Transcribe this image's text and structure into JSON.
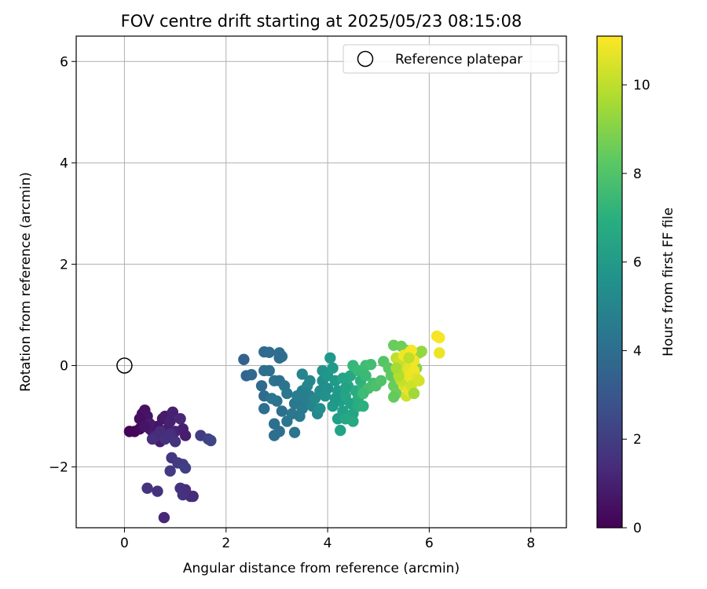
{
  "chart_data": {
    "type": "scatter",
    "title": "FOV centre drift starting at 2025/05/23 08:15:08",
    "xlabel": "Angular distance from reference (arcmin)",
    "ylabel": "Rotation from reference (arcmin)",
    "xlim": [
      -0.95,
      8.7
    ],
    "ylim": [
      -3.2,
      6.5
    ],
    "xticks": [
      0,
      2,
      4,
      6,
      8
    ],
    "xtick_labels": [
      "0",
      "2",
      "4",
      "6",
      "8"
    ],
    "yticks": [
      -2,
      0,
      2,
      4,
      6
    ],
    "ytick_labels": [
      "−2",
      "0",
      "2",
      "4",
      "6"
    ],
    "grid": true,
    "legend": {
      "position": "top-right",
      "entries": [
        "Reference platepar"
      ]
    },
    "reference_point": {
      "x": 0,
      "y": 0,
      "label": "Reference platepar",
      "marker": "open-circle"
    },
    "colorbar": {
      "label": "Hours from first FF file",
      "min": 0,
      "max": 11.1,
      "ticks": [
        0,
        2,
        4,
        6,
        8,
        10
      ],
      "tick_labels": [
        "0",
        "2",
        "4",
        "6",
        "8",
        "10"
      ],
      "colormap": "viridis"
    },
    "points": [
      [
        0.1,
        -1.3,
        0.1
      ],
      [
        0.2,
        -1.3,
        0.2
      ],
      [
        0.3,
        -1.25,
        0.3
      ],
      [
        0.35,
        -0.95,
        0.4
      ],
      [
        0.4,
        -0.88,
        0.5
      ],
      [
        0.45,
        -1.0,
        0.6
      ],
      [
        0.5,
        -1.25,
        0.5
      ],
      [
        0.55,
        -1.3,
        0.7
      ],
      [
        0.6,
        -1.35,
        0.8
      ],
      [
        0.65,
        -1.2,
        0.6
      ],
      [
        0.7,
        -1.5,
        0.9
      ],
      [
        0.75,
        -1.05,
        0.7
      ],
      [
        0.8,
        -1.0,
        0.8
      ],
      [
        0.85,
        -1.25,
        0.9
      ],
      [
        0.9,
        -1.1,
        1.0
      ],
      [
        0.95,
        -0.92,
        1.0
      ],
      [
        1.0,
        -1.3,
        1.1
      ],
      [
        1.1,
        -1.05,
        1.2
      ],
      [
        1.15,
        -1.25,
        1.0
      ],
      [
        1.2,
        -1.38,
        0.9
      ],
      [
        0.3,
        -1.05,
        0.4
      ],
      [
        0.5,
        -1.15,
        0.8
      ],
      [
        0.4,
        -1.2,
        0.6
      ],
      [
        0.6,
        -1.4,
        1.3
      ],
      [
        0.7,
        -1.3,
        1.4
      ],
      [
        0.55,
        -1.45,
        1.5
      ],
      [
        0.8,
        -1.45,
        1.6
      ],
      [
        0.9,
        -1.35,
        1.5
      ],
      [
        1.0,
        -1.5,
        1.7
      ],
      [
        1.5,
        -1.38,
        2.0
      ],
      [
        1.65,
        -1.45,
        2.2
      ],
      [
        1.7,
        -1.48,
        2.3
      ],
      [
        0.93,
        -1.82,
        1.8
      ],
      [
        1.05,
        -1.92,
        1.9
      ],
      [
        1.15,
        -1.95,
        2.0
      ],
      [
        1.2,
        -2.02,
        2.1
      ],
      [
        0.9,
        -2.08,
        1.9
      ],
      [
        1.1,
        -2.42,
        1.6
      ],
      [
        1.15,
        -2.55,
        1.7
      ],
      [
        1.2,
        -2.45,
        1.5
      ],
      [
        1.3,
        -2.58,
        1.6
      ],
      [
        1.35,
        -2.58,
        1.4
      ],
      [
        0.45,
        -2.42,
        1.7
      ],
      [
        0.65,
        -2.48,
        1.6
      ],
      [
        0.78,
        -3.0,
        1.2
      ],
      [
        2.35,
        0.12,
        3.5
      ],
      [
        2.4,
        -0.2,
        3.6
      ],
      [
        2.5,
        -0.18,
        3.7
      ],
      [
        2.75,
        0.27,
        3.8
      ],
      [
        2.85,
        0.26,
        3.9
      ],
      [
        3.05,
        0.25,
        4.0
      ],
      [
        3.1,
        0.18,
        4.1
      ],
      [
        3.05,
        0.15,
        3.9
      ],
      [
        2.75,
        -0.1,
        4.0
      ],
      [
        2.85,
        -0.1,
        4.1
      ],
      [
        2.7,
        -0.4,
        3.8
      ],
      [
        2.75,
        -0.6,
        3.9
      ],
      [
        2.75,
        -0.85,
        4.0
      ],
      [
        2.95,
        -0.3,
        4.2
      ],
      [
        3.05,
        -0.3,
        4.1
      ],
      [
        3.15,
        -0.4,
        4.3
      ],
      [
        3.2,
        -0.55,
        4.4
      ],
      [
        3.0,
        -0.7,
        4.2
      ],
      [
        2.9,
        -0.65,
        4.3
      ],
      [
        3.1,
        -0.9,
        4.1
      ],
      [
        3.2,
        -1.1,
        4.3
      ],
      [
        3.35,
        -0.75,
        4.4
      ],
      [
        3.45,
        -0.65,
        4.5
      ],
      [
        3.5,
        -0.85,
        4.6
      ],
      [
        3.45,
        -1.0,
        4.5
      ],
      [
        3.3,
        -0.95,
        4.4
      ],
      [
        3.35,
        -1.32,
        4.3
      ],
      [
        3.05,
        -1.3,
        4.1
      ],
      [
        2.95,
        -1.38,
        4.0
      ],
      [
        2.95,
        -1.15,
        4.1
      ],
      [
        3.5,
        -0.5,
        4.8
      ],
      [
        3.6,
        -0.7,
        4.7
      ],
      [
        3.65,
        -0.6,
        4.9
      ],
      [
        3.7,
        -0.8,
        5.0
      ],
      [
        3.6,
        -0.4,
        5.1
      ],
      [
        3.8,
        -0.95,
        5.2
      ],
      [
        3.75,
        -0.65,
        5.2
      ],
      [
        3.85,
        -0.5,
        5.3
      ],
      [
        3.5,
        -0.17,
        5.0
      ],
      [
        3.65,
        -0.3,
        5.1
      ],
      [
        3.9,
        -0.3,
        5.4
      ],
      [
        4.0,
        -0.45,
        5.5
      ],
      [
        3.95,
        -0.6,
        5.6
      ],
      [
        3.85,
        -0.85,
        5.5
      ],
      [
        3.4,
        -0.6,
        4.7
      ],
      [
        3.55,
        -0.55,
        4.8
      ],
      [
        3.9,
        -0.1,
        5.7
      ],
      [
        4.0,
        -0.2,
        5.8
      ],
      [
        4.05,
        0.15,
        5.9
      ],
      [
        4.1,
        -0.05,
        6.0
      ],
      [
        4.15,
        -0.3,
        6.1
      ],
      [
        4.2,
        -0.5,
        6.0
      ],
      [
        4.25,
        -0.7,
        6.2
      ],
      [
        4.3,
        -0.9,
        6.3
      ],
      [
        4.2,
        -1.05,
        6.2
      ],
      [
        4.25,
        -1.28,
        6.4
      ],
      [
        4.35,
        -0.6,
        6.5
      ],
      [
        4.4,
        -0.4,
        6.6
      ],
      [
        4.45,
        -0.75,
        6.4
      ],
      [
        4.5,
        -0.95,
        6.5
      ],
      [
        4.35,
        -1.05,
        6.6
      ],
      [
        4.5,
        -1.1,
        6.7
      ],
      [
        4.45,
        -0.2,
        6.6
      ],
      [
        4.3,
        -0.25,
        6.5
      ],
      [
        4.55,
        -0.5,
        6.8
      ],
      [
        4.6,
        -0.65,
        6.9
      ],
      [
        4.65,
        -0.3,
        7.0
      ],
      [
        4.7,
        -0.45,
        7.1
      ],
      [
        4.6,
        -0.8,
        6.8
      ],
      [
        4.7,
        -0.8,
        7.0
      ],
      [
        4.1,
        -0.8,
        6.1
      ],
      [
        4.15,
        -0.65,
        5.9
      ],
      [
        4.35,
        -0.45,
        6.4
      ],
      [
        4.5,
        0.0,
        7.4
      ],
      [
        4.6,
        -0.1,
        7.5
      ],
      [
        4.75,
        0.0,
        7.6
      ],
      [
        4.85,
        0.02,
        7.7
      ],
      [
        4.75,
        -0.2,
        7.5
      ],
      [
        4.8,
        -0.45,
        7.8
      ],
      [
        4.9,
        -0.35,
        7.7
      ],
      [
        4.95,
        -0.4,
        7.9
      ],
      [
        5.05,
        -0.3,
        8.0
      ],
      [
        4.7,
        -0.55,
        7.6
      ],
      [
        5.1,
        0.08,
        8.1
      ],
      [
        5.2,
        -0.05,
        8.2
      ],
      [
        5.25,
        -0.2,
        8.3
      ],
      [
        5.3,
        0.4,
        8.5
      ],
      [
        5.45,
        0.38,
        8.6
      ],
      [
        5.55,
        0.3,
        8.7
      ],
      [
        5.4,
        0.1,
        8.8
      ],
      [
        5.3,
        -0.4,
        8.5
      ],
      [
        5.35,
        -0.55,
        8.6
      ],
      [
        5.3,
        -0.62,
        8.4
      ],
      [
        5.5,
        -0.2,
        8.9
      ],
      [
        5.8,
        0.25,
        9.2
      ],
      [
        5.85,
        0.28,
        9.3
      ],
      [
        5.75,
        -0.05,
        9.1
      ],
      [
        5.35,
        0.15,
        10.0
      ],
      [
        5.45,
        0.1,
        10.2
      ],
      [
        5.5,
        -0.1,
        10.4
      ],
      [
        5.55,
        0.0,
        10.6
      ],
      [
        5.6,
        0.25,
        10.8
      ],
      [
        5.65,
        0.3,
        11.0
      ],
      [
        5.7,
        -0.1,
        10.9
      ],
      [
        5.5,
        -0.4,
        10.5
      ],
      [
        5.55,
        -0.6,
        10.3
      ],
      [
        5.6,
        -0.5,
        10.7
      ],
      [
        5.45,
        -0.3,
        10.1
      ],
      [
        5.4,
        0.05,
        10.2
      ],
      [
        5.6,
        -0.2,
        10.8
      ],
      [
        5.7,
        0.1,
        10.9
      ],
      [
        5.75,
        -0.25,
        10.6
      ],
      [
        5.65,
        -0.4,
        10.3
      ],
      [
        5.5,
        0.2,
        10.9
      ],
      [
        5.8,
        -0.3,
        10.4
      ],
      [
        6.15,
        0.58,
        10.9
      ],
      [
        6.2,
        0.55,
        11.0
      ],
      [
        6.2,
        0.25,
        10.8
      ],
      [
        5.4,
        -0.2,
        9.8
      ],
      [
        5.35,
        -0.05,
        9.6
      ],
      [
        5.6,
        0.15,
        10.0
      ],
      [
        5.7,
        -0.55,
        9.5
      ]
    ]
  }
}
